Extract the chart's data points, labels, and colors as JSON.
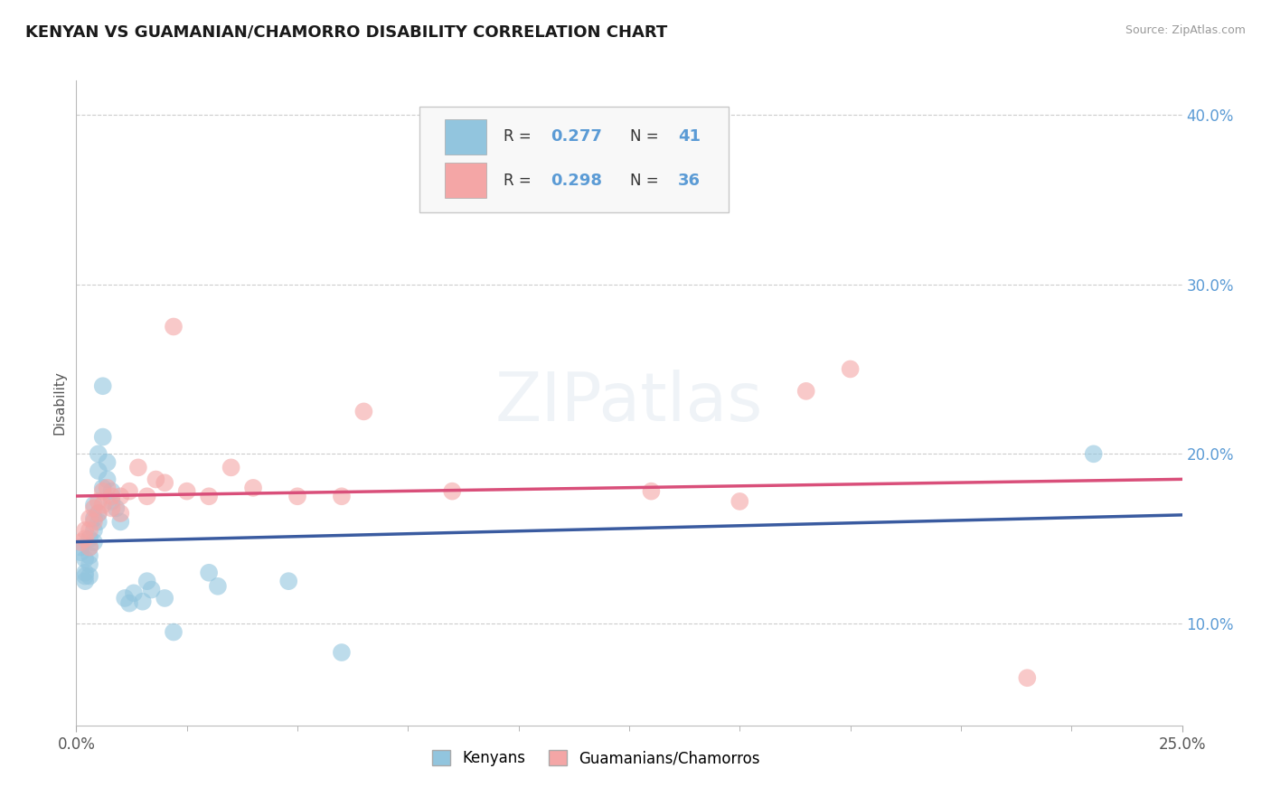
{
  "title": "KENYAN VS GUAMANIAN/CHAMORRO DISABILITY CORRELATION CHART",
  "source": "Source: ZipAtlas.com",
  "ylabel": "Disability",
  "xlim": [
    0.0,
    0.25
  ],
  "ylim": [
    0.04,
    0.42
  ],
  "yticks": [
    0.1,
    0.2,
    0.3,
    0.4
  ],
  "yticklabels": [
    "10.0%",
    "20.0%",
    "30.0%",
    "40.0%"
  ],
  "kenyan_color": "#92C5DE",
  "guam_color": "#F4A6A6",
  "kenyan_line_color": "#3A5BA0",
  "guam_line_color": "#D94F7A",
  "kenyan_x": [
    0.001,
    0.001,
    0.002,
    0.002,
    0.002,
    0.002,
    0.003,
    0.003,
    0.003,
    0.003,
    0.003,
    0.004,
    0.004,
    0.004,
    0.004,
    0.005,
    0.005,
    0.005,
    0.005,
    0.006,
    0.006,
    0.006,
    0.007,
    0.007,
    0.008,
    0.008,
    0.009,
    0.01,
    0.011,
    0.012,
    0.013,
    0.015,
    0.016,
    0.017,
    0.02,
    0.022,
    0.03,
    0.032,
    0.048,
    0.06,
    0.23
  ],
  "kenyan_y": [
    0.145,
    0.142,
    0.138,
    0.13,
    0.128,
    0.125,
    0.15,
    0.145,
    0.14,
    0.135,
    0.128,
    0.17,
    0.162,
    0.155,
    0.148,
    0.2,
    0.19,
    0.165,
    0.16,
    0.24,
    0.21,
    0.18,
    0.195,
    0.185,
    0.178,
    0.172,
    0.168,
    0.16,
    0.115,
    0.112,
    0.118,
    0.113,
    0.125,
    0.12,
    0.115,
    0.095,
    0.13,
    0.122,
    0.125,
    0.083,
    0.2
  ],
  "guam_x": [
    0.001,
    0.002,
    0.002,
    0.003,
    0.003,
    0.003,
    0.004,
    0.004,
    0.005,
    0.005,
    0.006,
    0.006,
    0.007,
    0.008,
    0.008,
    0.01,
    0.01,
    0.012,
    0.014,
    0.016,
    0.018,
    0.02,
    0.022,
    0.025,
    0.03,
    0.035,
    0.04,
    0.05,
    0.06,
    0.065,
    0.085,
    0.13,
    0.15,
    0.165,
    0.175,
    0.215
  ],
  "guam_y": [
    0.148,
    0.155,
    0.15,
    0.162,
    0.155,
    0.145,
    0.168,
    0.16,
    0.172,
    0.165,
    0.178,
    0.17,
    0.18,
    0.175,
    0.168,
    0.175,
    0.165,
    0.178,
    0.192,
    0.175,
    0.185,
    0.183,
    0.275,
    0.178,
    0.175,
    0.192,
    0.18,
    0.175,
    0.175,
    0.225,
    0.178,
    0.178,
    0.172,
    0.237,
    0.25,
    0.068
  ],
  "grid_color": "#cccccc",
  "background_color": "#ffffff",
  "legend_label_kenyan": "Kenyans",
  "legend_label_guam": "Guamanians/Chamorros",
  "legend_r_kenyan": "0.277",
  "legend_n_kenyan": "41",
  "legend_r_guam": "0.298",
  "legend_n_guam": "36"
}
